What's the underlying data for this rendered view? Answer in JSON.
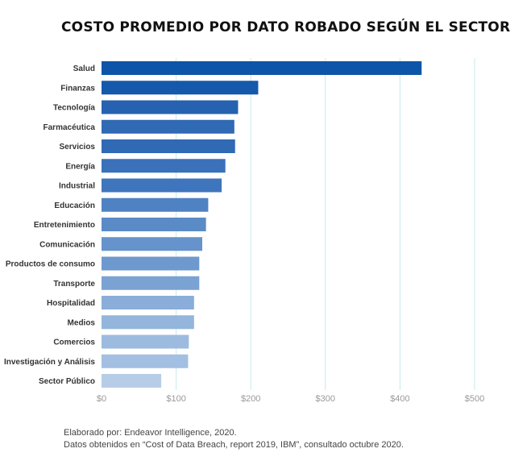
{
  "chart_data": {
    "type": "bar",
    "orientation": "horizontal",
    "title": "COSTO PROMEDIO POR DATO ROBADO SEGÚN EL SECTOR",
    "categories": [
      "Salud",
      "Finanzas",
      "Tecnología",
      "Farmacéutica",
      "Servicios",
      "Energía",
      "Industrial",
      "Educación",
      "Entretenimiento",
      "Comunicación",
      "Productos de consumo",
      "Transporte",
      "Hospitalidad",
      "Medios",
      "Comercios",
      "Investigación y Análisis",
      "Sector Público"
    ],
    "values": [
      429,
      210,
      183,
      178,
      179,
      166,
      161,
      143,
      140,
      135,
      131,
      131,
      124,
      124,
      117,
      116,
      80
    ],
    "xlim": [
      0,
      500
    ],
    "x_ticks": [
      "$0",
      "$100",
      "$200",
      "$300",
      "$400",
      "$500"
    ],
    "x_tick_values": [
      0,
      100,
      200,
      300,
      400,
      500
    ],
    "xlabel": "",
    "ylabel": "",
    "grid": "vertical",
    "bar_colors": [
      "#0d55a8",
      "#1459ac",
      "#2662b0",
      "#3069b4",
      "#3069b4",
      "#3a71b9",
      "#3f75bc",
      "#4f82c2",
      "#5b8bc7",
      "#6693cb",
      "#6e99ce",
      "#7aa2d3",
      "#8aadd9",
      "#94b5dc",
      "#9dbbdf",
      "#a3bfe2",
      "#b7cce7"
    ],
    "grid_color": "#c8eaee",
    "axis_tick_color": "#999999"
  },
  "footnote": {
    "line1": "Elaborado por: Endeavor Intelligence, 2020.",
    "line2": "Datos obtenidos en “Cost of Data Breach, report 2019, IBM”, consultado octubre 2020."
  }
}
